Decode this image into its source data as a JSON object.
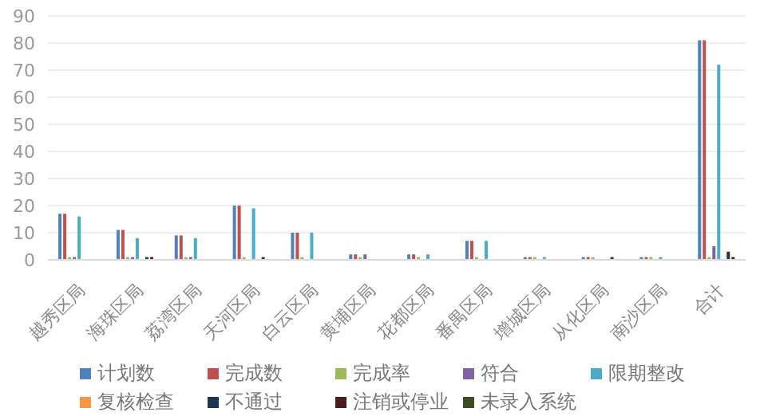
{
  "chart_data": {
    "type": "bar",
    "categories": [
      "越秀区局",
      "海珠区局",
      "荔湾区局",
      "天河区局",
      "白云区局",
      "黄埔区局",
      "花都区局",
      "番禺区局",
      "增城区局",
      "从化区局",
      "南沙区局",
      "合计"
    ],
    "series": [
      {
        "name": "计划数",
        "color": "#4f81bd",
        "values": [
          17,
          11,
          9,
          20,
          10,
          2,
          2,
          7,
          1,
          1,
          1,
          81
        ]
      },
      {
        "name": "完成数",
        "color": "#c0504d",
        "values": [
          17,
          11,
          9,
          20,
          10,
          2,
          2,
          7,
          1,
          1,
          1,
          81
        ]
      },
      {
        "name": "完成率",
        "color": "#9bbb59",
        "values": [
          1,
          1,
          1,
          1,
          1,
          1,
          1,
          1,
          1,
          1,
          1,
          1
        ]
      },
      {
        "name": "符合",
        "color": "#8064a2",
        "values": [
          1,
          1,
          1,
          0,
          0,
          2,
          0,
          0,
          0,
          0,
          0,
          5
        ]
      },
      {
        "name": "限期整改",
        "color": "#4bacc6",
        "values": [
          16,
          8,
          8,
          19,
          10,
          0,
          2,
          7,
          1,
          0,
          1,
          72
        ]
      },
      {
        "name": "复核检查",
        "color": "#f79646",
        "values": [
          0,
          0,
          0,
          0,
          0,
          0,
          0,
          0,
          0,
          0,
          0,
          0
        ]
      },
      {
        "name": "不通过",
        "color": "#1f3552",
        "values": [
          0,
          1,
          0,
          1,
          0,
          0,
          0,
          0,
          0,
          1,
          0,
          3
        ]
      },
      {
        "name": "注销或停业",
        "color": "#4d1c1c",
        "values": [
          0,
          1,
          0,
          0,
          0,
          0,
          0,
          0,
          0,
          0,
          0,
          1
        ]
      },
      {
        "name": "未录入系统",
        "color": "#3b4d22",
        "values": [
          0,
          0,
          0,
          0,
          0,
          0,
          0,
          0,
          0,
          0,
          0,
          0
        ]
      }
    ],
    "ylim": [
      0,
      90
    ],
    "yticks": [
      0,
      10,
      20,
      30,
      40,
      50,
      60,
      70,
      80,
      90
    ],
    "grid": "y",
    "legend": "bottom"
  }
}
